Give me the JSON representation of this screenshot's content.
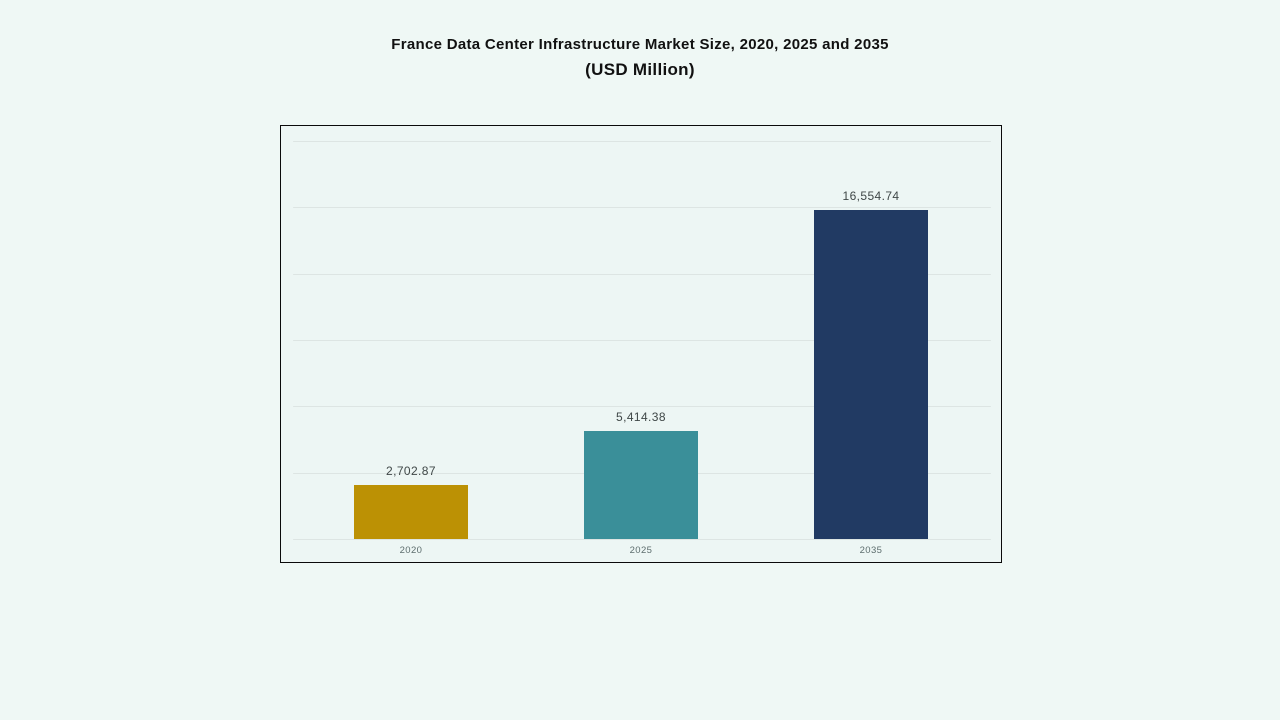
{
  "page": {
    "background": "#eff8f5"
  },
  "title": {
    "line1": "France Data Center Infrastructure  Market Size, 2020, 2025 and 2035",
    "line2": "(USD Million)"
  },
  "chart_data": {
    "type": "bar",
    "title": "France Data Center Infrastructure Market Size, 2020, 2025 and 2035 (USD Million)",
    "categories": [
      "2020",
      "2025",
      "2035"
    ],
    "values": [
      2702.87,
      5414.38,
      16554.74
    ],
    "value_labels": [
      "2,702.87",
      "5,414.38",
      "16,554.74"
    ],
    "bar_colors": [
      "#bc9104",
      "#3a8f99",
      "#213a63"
    ],
    "xlabel": "",
    "ylabel": "",
    "ylim": [
      0,
      20000
    ],
    "gridline_count": 7,
    "grid_color": "#dde5e3",
    "grid": "on",
    "legend_position": "none",
    "plot_border_color": "#0a0a0a"
  }
}
